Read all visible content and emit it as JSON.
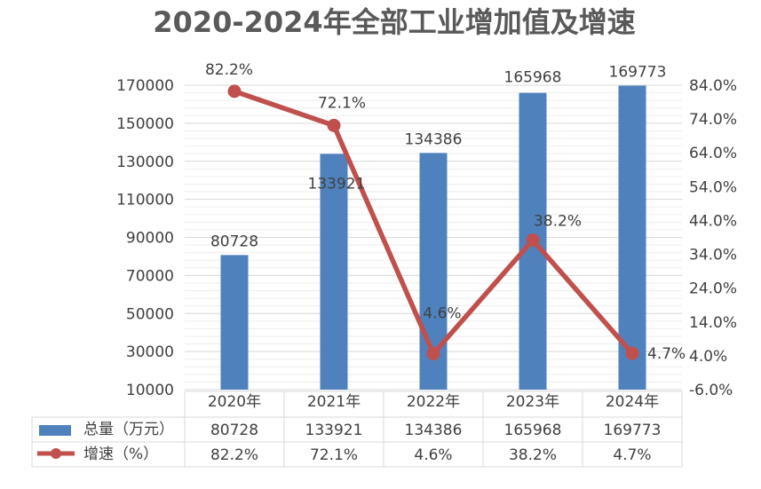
{
  "chart_data": {
    "type": "bar+line",
    "title": "2020-2024年全部工业增加值及增速",
    "categories": [
      "2020年",
      "2021年",
      "2022年",
      "2023年",
      "2024年"
    ],
    "series": [
      {
        "name": "总量（万元）",
        "type": "bar",
        "axis": "left",
        "color": "#4f81bd",
        "values": [
          80728,
          133921,
          134386,
          165968,
          169773
        ],
        "labels": [
          "80728",
          "133921",
          "134386",
          "165968",
          "169773"
        ]
      },
      {
        "name": "增速（%）",
        "type": "line",
        "axis": "right",
        "color": "#c0504d",
        "values": [
          82.2,
          72.1,
          4.6,
          38.2,
          4.7
        ],
        "labels": [
          "82.2%",
          "72.1%",
          "4.6%",
          "38.2%",
          "4.7%"
        ]
      }
    ],
    "y_left": {
      "min": 10000,
      "max": 170000,
      "ticks": [
        "10000",
        "30000",
        "50000",
        "70000",
        "90000",
        "110000",
        "130000",
        "150000",
        "170000"
      ]
    },
    "y_right": {
      "min": -6.0,
      "max": 84.0,
      "ticks": [
        "-6.0%",
        "4.0%",
        "14.0%",
        "24.0%",
        "34.0%",
        "44.0%",
        "54.0%",
        "64.0%",
        "74.0%",
        "84.0%"
      ]
    },
    "grid": true,
    "legend": "data-table"
  }
}
